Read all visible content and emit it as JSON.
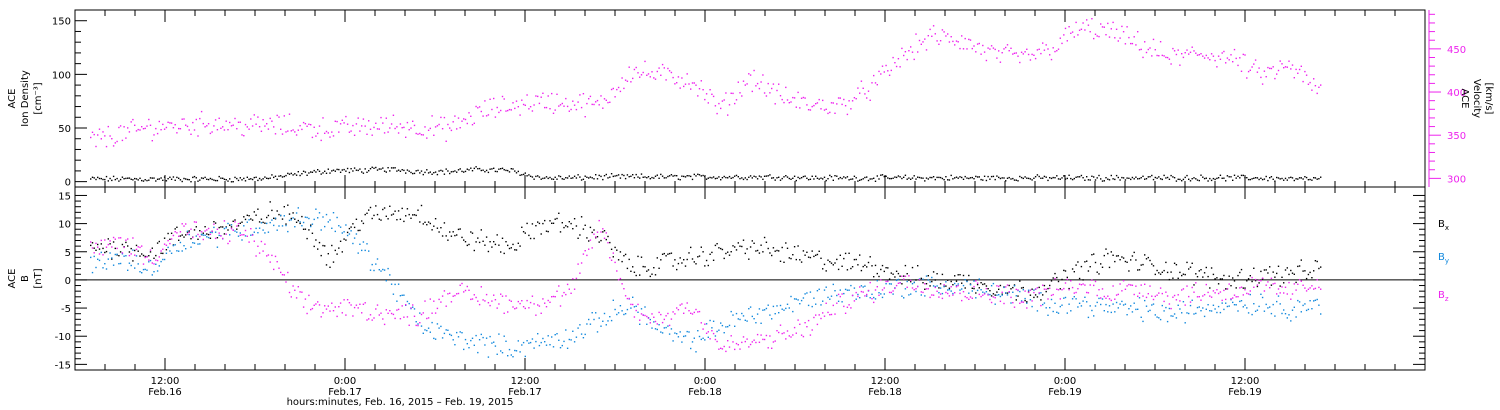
{
  "chart_data": [
    {
      "type": "scatter",
      "panel": "plasma",
      "ylabel_left": [
        "ACE",
        "Ion Density",
        "[cm⁻³]"
      ],
      "ylabel_right": [
        "ACE",
        "Velocity",
        "[km/s]"
      ],
      "ylim_left": [
        -5,
        160
      ],
      "yticks_left": [
        "0",
        "50",
        "100",
        "150"
      ],
      "ylim_right": [
        290,
        495
      ],
      "yticks_right": [
        "300",
        "350",
        "400",
        "450"
      ],
      "grid": false,
      "colors": {
        "density": "#000000",
        "velocity": "#ee22ee",
        "axis_right": "#ee22ee"
      },
      "series": [
        {
          "axis": "left",
          "color": "#000000",
          "x": [
            7,
            9,
            11,
            13,
            15,
            17,
            19,
            21,
            23,
            25,
            27,
            29,
            31,
            33,
            35,
            37,
            39,
            41,
            43,
            45,
            47,
            49,
            51,
            53,
            55,
            57,
            59,
            61,
            63,
            65,
            67,
            69,
            71,
            73,
            75,
            77,
            79,
            81,
            83,
            85,
            87,
            89
          ],
          "y": [
            3,
            3,
            3,
            3,
            3,
            3,
            4,
            8,
            11,
            11,
            12,
            10,
            10,
            12,
            11,
            4,
            4,
            5,
            5,
            5,
            5,
            5,
            5,
            5,
            4,
            4,
            4,
            4,
            4,
            4,
            4,
            4,
            4,
            4,
            4,
            4,
            4,
            4,
            4,
            4,
            3,
            3
          ]
        },
        {
          "axis": "right",
          "color": "#ee22ee",
          "x": [
            7,
            9,
            11,
            13,
            15,
            17,
            19,
            21,
            23,
            25,
            27,
            29,
            31,
            33,
            35,
            37,
            39,
            41,
            43,
            45,
            47,
            49,
            51,
            53,
            55,
            57,
            59,
            61,
            63,
            65,
            67,
            69,
            71,
            73,
            75,
            77,
            79,
            81,
            83,
            85,
            87,
            89
          ],
          "y": [
            345,
            352,
            360,
            362,
            365,
            362,
            362,
            360,
            358,
            360,
            362,
            360,
            358,
            378,
            385,
            390,
            388,
            385,
            425,
            420,
            415,
            380,
            418,
            395,
            385,
            385,
            405,
            440,
            465,
            460,
            445,
            440,
            450,
            475,
            470,
            455,
            440,
            445,
            440,
            420,
            430,
            400
          ]
        }
      ]
    },
    {
      "type": "scatter",
      "panel": "magnetic-field",
      "ylabel_left": [
        "ACE",
        "B",
        "[nT]"
      ],
      "ylim": [
        -16,
        16.5
      ],
      "yticks": [
        "-15",
        "-10",
        "-5",
        "0",
        "5",
        "10",
        "15"
      ],
      "xticks": [
        {
          "x": 12,
          "time": "12:00",
          "day": "Feb.16"
        },
        {
          "x": 24,
          "time": "0:00",
          "day": "Feb.17"
        },
        {
          "x": 36,
          "time": "12:00",
          "day": "Feb.17"
        },
        {
          "x": 48,
          "time": "0:00",
          "day": "Feb.18"
        },
        {
          "x": 60,
          "time": "12:00",
          "day": "Feb.18"
        },
        {
          "x": 72,
          "time": "0:00",
          "day": "Feb.19"
        },
        {
          "x": 84,
          "time": "12:00",
          "day": "Feb.19"
        }
      ],
      "xlim": [
        6,
        96
      ],
      "xlabel": "hours:minutes, Feb. 16, 2015 – Feb. 19, 2015",
      "legend": {
        "placement": "right",
        "entries": [
          {
            "label": "B",
            "sub": "x",
            "color": "#000000"
          },
          {
            "label": "B",
            "sub": "y",
            "color": "#1188dd"
          },
          {
            "label": "B",
            "sub": "z",
            "color": "#ee22ee"
          }
        ]
      },
      "series": [
        {
          "name": "Bx",
          "color": "#000000",
          "x": [
            7,
            9,
            11,
            13,
            15,
            17,
            19,
            21,
            23,
            25,
            27,
            29,
            31,
            33,
            35,
            37,
            39,
            41,
            43,
            45,
            47,
            49,
            51,
            53,
            55,
            57,
            59,
            61,
            63,
            65,
            67,
            69,
            71,
            73,
            75,
            77,
            79,
            81,
            83,
            85,
            87,
            89
          ],
          "y": [
            6,
            6,
            5,
            8,
            9,
            10,
            12,
            11,
            4,
            11,
            12,
            12,
            8,
            7,
            6,
            10,
            10,
            8,
            2,
            3,
            4,
            5,
            6,
            5,
            4,
            3,
            3,
            1,
            0,
            0,
            -1,
            -2,
            -1,
            2,
            4,
            3,
            2,
            1,
            0,
            1,
            1,
            2
          ]
        },
        {
          "name": "By",
          "color": "#1188dd",
          "x": [
            7,
            9,
            11,
            13,
            15,
            17,
            19,
            21,
            23,
            25,
            27,
            29,
            31,
            33,
            35,
            37,
            39,
            41,
            43,
            45,
            47,
            49,
            51,
            53,
            55,
            57,
            59,
            61,
            63,
            65,
            67,
            69,
            71,
            73,
            75,
            77,
            79,
            81,
            83,
            85,
            87,
            89
          ],
          "y": [
            3,
            4,
            2,
            7,
            8,
            9,
            10,
            11,
            11,
            6,
            0,
            -8,
            -10,
            -11,
            -12,
            -11,
            -10,
            -7,
            -4,
            -9,
            -11,
            -8,
            -6,
            -5,
            -3,
            -2,
            -2,
            -1,
            -1,
            -1,
            -2,
            -3,
            -4,
            -4,
            -5,
            -5,
            -6,
            -5,
            -4,
            -4,
            -5,
            -4
          ]
        },
        {
          "name": "Bz",
          "color": "#ee22ee",
          "x": [
            7,
            9,
            11,
            13,
            15,
            17,
            19,
            21,
            23,
            25,
            27,
            29,
            31,
            33,
            35,
            37,
            39,
            41,
            43,
            45,
            47,
            49,
            51,
            53,
            55,
            57,
            59,
            61,
            63,
            65,
            67,
            69,
            71,
            73,
            75,
            77,
            79,
            81,
            83,
            85,
            87,
            89
          ],
          "y": [
            5,
            7,
            4,
            9,
            8,
            9,
            4,
            -4,
            -5,
            -5,
            -6,
            -6,
            -2,
            -3,
            -4,
            -4,
            -2,
            10,
            -5,
            -7,
            -4,
            -12,
            -11,
            -10,
            -8,
            -4,
            -2,
            0,
            -1,
            -2,
            -2,
            -3,
            -2,
            -1,
            -2,
            -1,
            -3,
            -2,
            -2,
            -1,
            -2,
            0
          ]
        }
      ]
    }
  ]
}
